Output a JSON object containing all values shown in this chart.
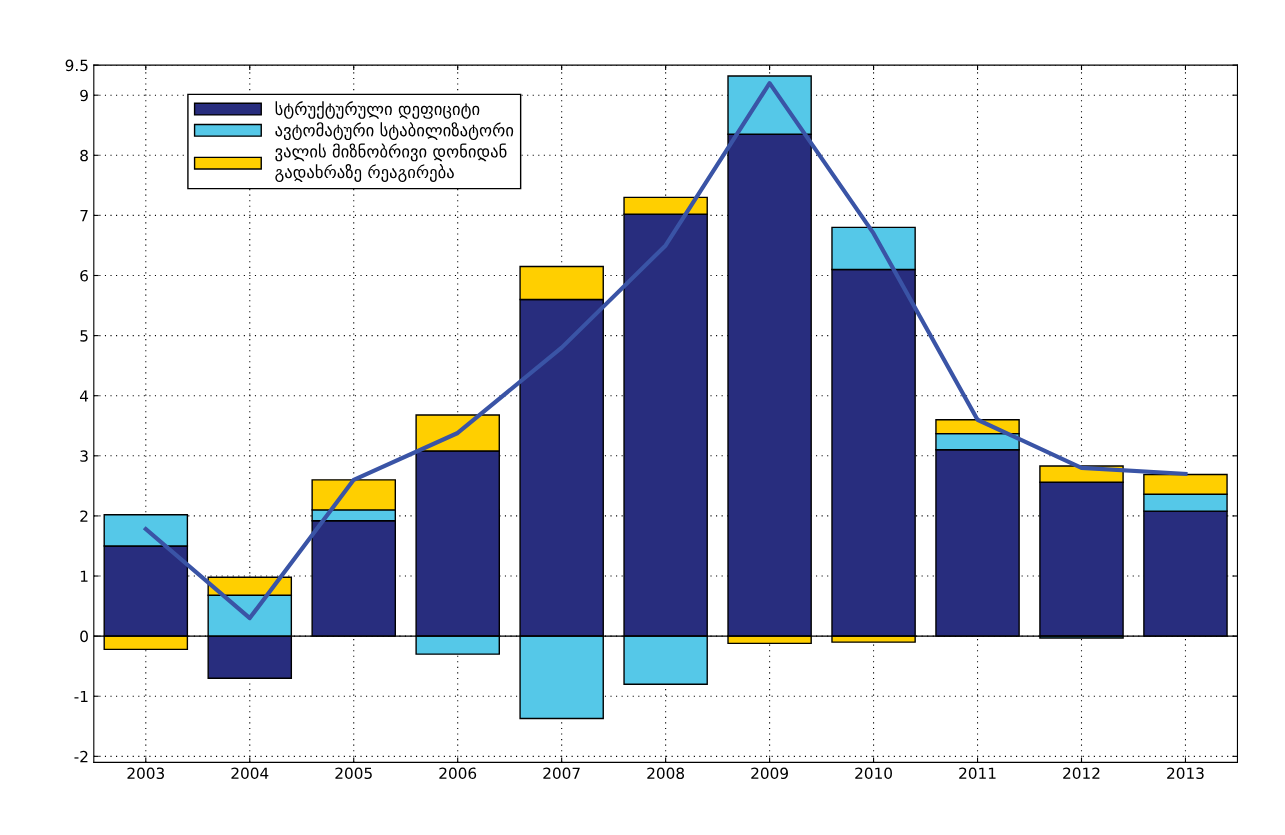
{
  "chart_data": {
    "type": "bar",
    "stacked": true,
    "categories": [
      "2003",
      "2004",
      "2005",
      "2006",
      "2007",
      "2008",
      "2009",
      "2010",
      "2011",
      "2012",
      "2013"
    ],
    "series": [
      {
        "name": "სტრუქტურული დეფიციტი",
        "color": "#282d7e",
        "values": [
          1.5,
          -0.7,
          1.92,
          3.08,
          5.6,
          7.02,
          8.35,
          6.1,
          3.1,
          2.56,
          2.08
        ]
      },
      {
        "name": "ავტომატური სტაბილიზატორი",
        "color": "#55c8e8",
        "values": [
          0.52,
          0.68,
          0.18,
          -0.3,
          -1.37,
          -0.8,
          0.97,
          0.7,
          0.27,
          -0.03,
          0.28
        ]
      },
      {
        "name": "ვალის მიზნობრივი დონიდან\nგადახრაზე რეაგირება",
        "color": "#ffcf00",
        "values": [
          -0.22,
          0.3,
          0.5,
          0.6,
          0.55,
          0.28,
          -0.12,
          -0.1,
          0.23,
          0.27,
          0.33
        ]
      },
      {
        "type": "line",
        "color": "#3a54a6",
        "values": [
          1.78,
          0.3,
          2.6,
          3.38,
          4.8,
          6.5,
          9.2,
          6.7,
          3.6,
          2.8,
          2.7
        ]
      }
    ],
    "ylim": [
      -2.1,
      9.5
    ],
    "yticks": [
      -2,
      -1,
      0,
      1,
      2,
      3,
      4,
      5,
      6,
      7,
      8,
      9,
      9.5
    ],
    "ref_lines": [
      {
        "axis": "y",
        "value": 0,
        "color": "#000000",
        "line_style": "solid"
      }
    ],
    "grid": true,
    "legend": "top left"
  }
}
